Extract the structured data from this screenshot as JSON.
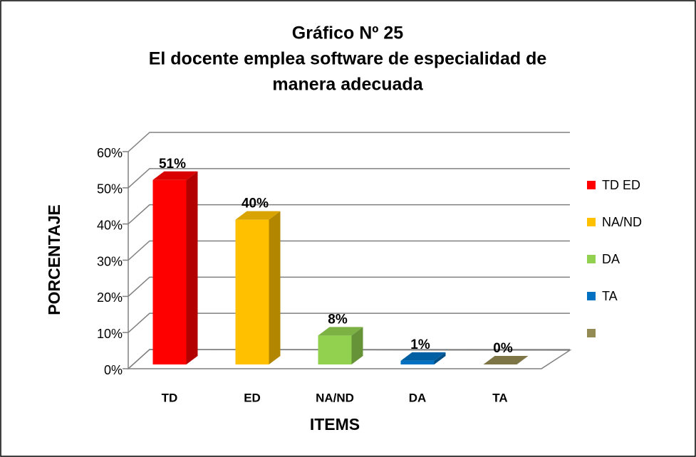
{
  "chart_data": {
    "type": "bar3d",
    "title": [
      "Gráfico Nº 25",
      "El docente emplea software de especialidad de",
      "manera adecuada"
    ],
    "x_label": "ITEMS",
    "y_label": "PORCENTAJE",
    "categories": [
      "TD",
      "ED",
      "NA/ND",
      "DA",
      "TA"
    ],
    "values": [
      51,
      40,
      8,
      1,
      0
    ],
    "value_labels": [
      "51%",
      "40%",
      "8%",
      "1%",
      "0%"
    ],
    "colors": [
      "#ff0000",
      "#ffc000",
      "#92d050",
      "#0070c0",
      "#948a54"
    ],
    "legend": [
      "TD ED",
      "NA/ND",
      "DA",
      "TA",
      null
    ],
    "ylim": [
      0,
      60
    ],
    "yticks": [
      {
        "value": 0,
        "label": "0%"
      },
      {
        "value": 10,
        "label": "10%"
      },
      {
        "value": 20,
        "label": "20%"
      },
      {
        "value": 30,
        "label": "30%"
      },
      {
        "value": 40,
        "label": "40%"
      },
      {
        "value": 50,
        "label": "50%"
      },
      {
        "value": 60,
        "label": "60%"
      }
    ],
    "grid": true
  }
}
